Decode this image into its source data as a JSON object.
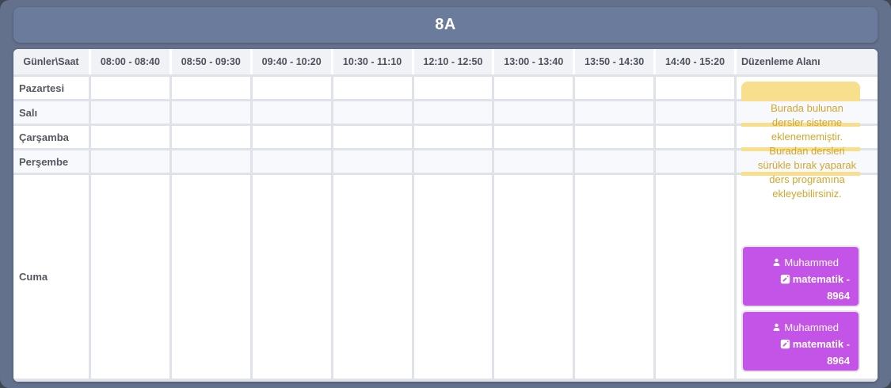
{
  "window": {
    "title": "8A"
  },
  "timetable": {
    "columns": [
      "Günler\\Saat",
      "08:00 - 08:40",
      "08:50 - 09:30",
      "09:40 - 10:20",
      "10:30 - 11:10",
      "12:10 - 12:50",
      "13:00 - 13:40",
      "13:50 - 14:30",
      "14:40 - 15:20",
      "Düzenleme Alanı"
    ],
    "days": [
      "Pazartesi",
      "Salı",
      "Çarşamba",
      "Perşembe",
      "Cuma"
    ],
    "cells_empty": true
  },
  "edit_area": {
    "notice": "Burada bulunan dersler sisteme eklenememiştir. Buradan dersleri sürükle bırak yaparak ders programına ekleyebilirsiniz.",
    "cards": [
      {
        "teacher": "Muhammed",
        "lesson": "matematik - 8964"
      },
      {
        "teacher": "Muhammed",
        "lesson": "matematik - 8964"
      }
    ]
  },
  "icons": {
    "teacher": "user-icon",
    "lesson": "edit-icon"
  },
  "colors": {
    "panel": "#64718c",
    "titlebar": "#6b7b9b",
    "accent_purple": "#c453e8",
    "notice_yellow": "#f7df8e",
    "notice_text": "#d1a72e"
  }
}
